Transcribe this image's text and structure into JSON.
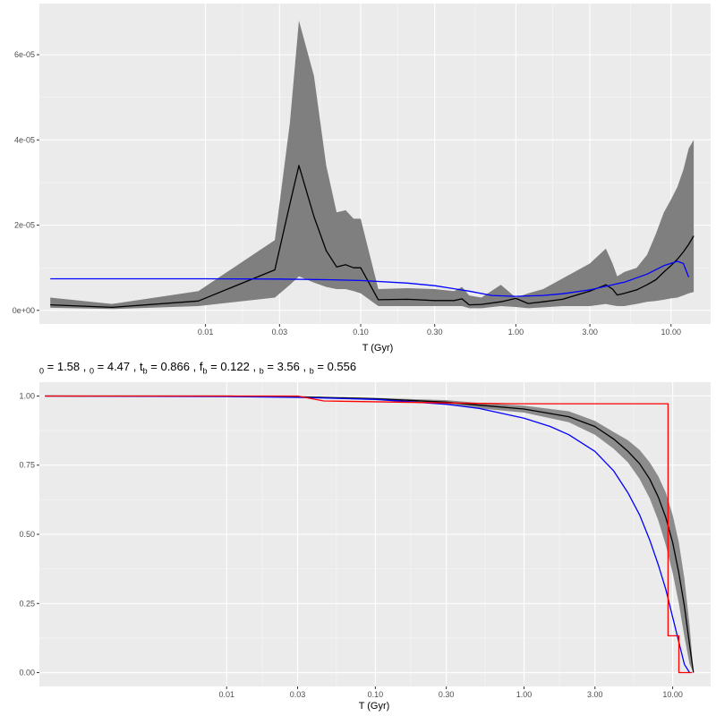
{
  "param_line": {
    "items": [
      {
        "sub": "0",
        "value": "1.58"
      },
      {
        "sub": "0",
        "value": "4.47"
      },
      {
        "main": "t",
        "sub": "b",
        "value": "0.866"
      },
      {
        "main": "f",
        "sub": "b",
        "value": "0.122"
      },
      {
        "sub": "b",
        "value": "3.56"
      },
      {
        "sub": "b",
        "value": "0.556"
      }
    ]
  },
  "chart_data": [
    {
      "type": "line",
      "xlabel": "T (Gyr)",
      "ylabel": "",
      "x_scale": "log",
      "xlim": [
        0.00085,
        18
      ],
      "ylim": [
        -3.2e-06,
        7.2e-05
      ],
      "x_ticks": [
        0.01,
        0.03,
        0.1,
        0.3,
        1,
        3,
        10
      ],
      "x_tick_labels": [
        "0.01",
        "0.03",
        "0.10",
        "0.30",
        "1.00",
        "3.00",
        "10.00"
      ],
      "y_ticks": [
        0,
        2e-05,
        4e-05,
        6e-05
      ],
      "y_tick_labels": [
        "0e+00",
        "2e-05",
        "4e-05",
        "6e-05"
      ],
      "grid": true,
      "band": {
        "color": "#7f7f7f",
        "x": [
          0.001,
          0.0025,
          0.009,
          0.028,
          0.035,
          0.04,
          0.05,
          0.06,
          0.07,
          0.08,
          0.09,
          0.1,
          0.13,
          0.2,
          0.3,
          0.4,
          0.45,
          0.5,
          0.6,
          0.8,
          1.0,
          1.2,
          1.5,
          2.0,
          3.0,
          3.8,
          4.2,
          4.5,
          5.0,
          6.0,
          7.0,
          8.0,
          9.0,
          10.0,
          11.0,
          12.0,
          13.0,
          14.0
        ],
        "upper": [
          3e-06,
          1.5e-06,
          4.5e-06,
          1.65e-05,
          4.4e-05,
          6.8e-05,
          5.5e-05,
          3.4e-05,
          2.3e-05,
          2.35e-05,
          2.15e-05,
          2.15e-05,
          5e-06,
          5.2e-06,
          5e-06,
          4.5e-06,
          5.5e-06,
          3.5e-06,
          3e-06,
          6e-06,
          3e-06,
          4e-06,
          5e-06,
          7.5e-06,
          1.1e-05,
          1.45e-05,
          1.1e-05,
          8e-06,
          9e-06,
          1e-05,
          1.3e-05,
          1.8e-05,
          2.3e-05,
          2.6e-05,
          2.9e-05,
          3.3e-05,
          3.8e-05,
          4e-05
        ],
        "lower": [
          6e-07,
          3e-07,
          1e-06,
          3e-06,
          6e-06,
          8e-06,
          6.5e-06,
          5.5e-06,
          5e-06,
          5e-06,
          4.5e-06,
          4e-06,
          1e-06,
          1e-06,
          1e-06,
          1e-06,
          1e-06,
          5e-07,
          5e-07,
          1e-06,
          8e-07,
          5e-07,
          7e-07,
          1e-06,
          1e-06,
          1.5e-06,
          1.2e-06,
          1e-06,
          1e-06,
          1.5e-06,
          2e-06,
          2.2e-06,
          2.5e-06,
          2.8e-06,
          3e-06,
          3.5e-06,
          4e-06,
          4.3e-06
        ]
      },
      "series": [
        {
          "color": "#000000",
          "x": [
            0.001,
            0.0025,
            0.009,
            0.028,
            0.035,
            0.04,
            0.05,
            0.06,
            0.07,
            0.08,
            0.09,
            0.1,
            0.13,
            0.2,
            0.3,
            0.4,
            0.45,
            0.5,
            0.6,
            0.8,
            1.0,
            1.2,
            1.5,
            2.0,
            3.0,
            3.8,
            4.2,
            4.5,
            5.0,
            6.0,
            7.0,
            8.0,
            9.0,
            10.0,
            11.0,
            12.0,
            13.0,
            14.0
          ],
          "y": [
            1.3e-06,
            7e-07,
            2.2e-06,
            9.5e-06,
            2.5e-05,
            3.4e-05,
            2.2e-05,
            1.4e-05,
            1.02e-05,
            1.07e-05,
            1e-05,
            1e-05,
            2.5e-06,
            2.6e-06,
            2.3e-06,
            2.3e-06,
            2.7e-06,
            1.3e-06,
            1.4e-06,
            2e-06,
            2.8e-06,
            1.6e-06,
            2e-06,
            2.6e-06,
            4.5e-06,
            6e-06,
            5e-06,
            3.6e-06,
            4e-06,
            4.8e-06,
            6e-06,
            7.2e-06,
            9e-06,
            1.05e-05,
            1.2e-05,
            1.37e-05,
            1.55e-05,
            1.75e-05
          ]
        },
        {
          "color": "#0000ff",
          "x": [
            0.001,
            0.01,
            0.03,
            0.06,
            0.1,
            0.2,
            0.3,
            0.5,
            0.7,
            1.0,
            1.5,
            2.0,
            3.0,
            5.0,
            7.0,
            9.0,
            11.0,
            12.0,
            13.0
          ],
          "y": [
            7.4e-06,
            7.4e-06,
            7.35e-06,
            7.2e-06,
            7e-06,
            6.4e-06,
            5.8e-06,
            4.5e-06,
            3.5e-06,
            3.3e-06,
            3.5e-06,
            3.9e-06,
            4.8e-06,
            6.6e-06,
            8.5e-06,
            1.05e-05,
            1.15e-05,
            1.1e-05,
            7.8e-06
          ]
        }
      ]
    },
    {
      "type": "line",
      "xlabel": "T (Gyr)",
      "ylabel": "",
      "x_scale": "log",
      "xlim": [
        0.00055,
        18
      ],
      "ylim": [
        -0.05,
        1.05
      ],
      "x_ticks": [
        0.01,
        0.03,
        0.1,
        0.3,
        1,
        3,
        10
      ],
      "x_tick_labels": [
        "0.01",
        "0.03",
        "0.10",
        "0.30",
        "1.00",
        "3.00",
        "10.00"
      ],
      "y_ticks": [
        0,
        0.25,
        0.5,
        0.75,
        1.0
      ],
      "y_tick_labels": [
        "0.00",
        "0.25",
        "0.50",
        "0.75",
        "1.00"
      ],
      "grid": true,
      "band": {
        "color": "#8c8c8c",
        "x": [
          0.03,
          0.1,
          0.3,
          0.5,
          1.0,
          2.0,
          3.0,
          4.0,
          5.0,
          6.0,
          7.0,
          8.0,
          9.0,
          10.0,
          11.0,
          12.0,
          13.0,
          13.8
        ],
        "upper": [
          1.0,
          0.993,
          0.985,
          0.975,
          0.965,
          0.945,
          0.91,
          0.87,
          0.84,
          0.805,
          0.76,
          0.71,
          0.65,
          0.57,
          0.47,
          0.34,
          0.17,
          0.0
        ],
        "lower": [
          0.995,
          0.985,
          0.97,
          0.955,
          0.94,
          0.905,
          0.86,
          0.81,
          0.76,
          0.7,
          0.63,
          0.55,
          0.46,
          0.36,
          0.25,
          0.13,
          0.03,
          0.0
        ]
      },
      "series": [
        {
          "color": "#000000",
          "x": [
            0.0006,
            0.01,
            0.03,
            0.1,
            0.3,
            0.5,
            1.0,
            2.0,
            3.0,
            4.0,
            5.0,
            6.0,
            7.0,
            8.0,
            9.0,
            10.0,
            11.0,
            12.0,
            13.0,
            13.8
          ],
          "y": [
            1.0,
            1.0,
            0.997,
            0.99,
            0.978,
            0.967,
            0.953,
            0.925,
            0.89,
            0.845,
            0.8,
            0.755,
            0.7,
            0.635,
            0.56,
            0.47,
            0.36,
            0.24,
            0.1,
            0.0
          ]
        },
        {
          "color": "#0000ff",
          "x": [
            0.0006,
            0.01,
            0.03,
            0.1,
            0.3,
            0.5,
            1.0,
            1.5,
            2.0,
            3.0,
            4.0,
            5.0,
            6.0,
            7.0,
            8.0,
            9.0,
            10.0,
            11.0,
            12.0,
            13.0
          ],
          "y": [
            1.0,
            0.998,
            0.995,
            0.988,
            0.97,
            0.955,
            0.92,
            0.89,
            0.86,
            0.8,
            0.73,
            0.65,
            0.57,
            0.48,
            0.39,
            0.3,
            0.2,
            0.11,
            0.03,
            0.0
          ]
        },
        {
          "color": "#ff0000",
          "step": true,
          "x": [
            0.0006,
            0.03,
            0.045,
            0.3,
            0.866,
            9.3,
            9.3,
            11.0,
            11.0,
            13.5
          ],
          "y": [
            1.0,
            1.0,
            0.982,
            0.975,
            0.972,
            0.972,
            0.133,
            0.133,
            0.0,
            0.0
          ]
        }
      ]
    }
  ]
}
